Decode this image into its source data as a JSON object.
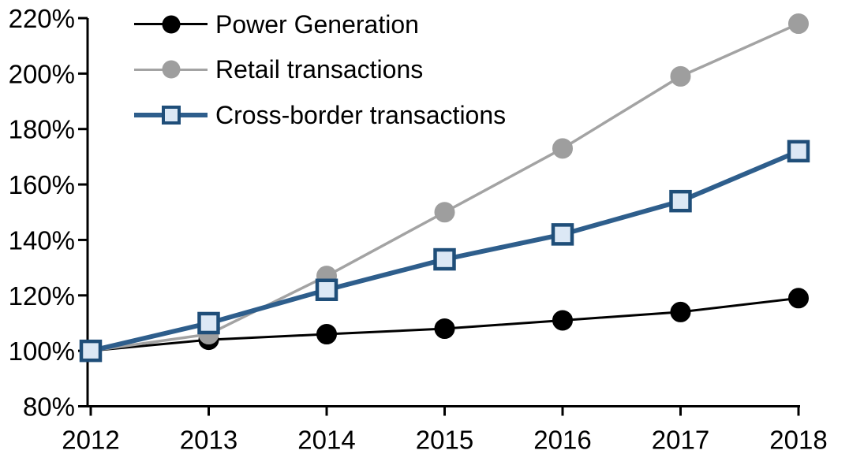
{
  "chart_data": {
    "type": "line",
    "title": "",
    "xlabel": "",
    "ylabel": "",
    "categories": [
      "2012",
      "2013",
      "2014",
      "2015",
      "2016",
      "2017",
      "2018"
    ],
    "series": [
      {
        "name": "Power Generation",
        "values": [
          100,
          104,
          106,
          108,
          111,
          114,
          119
        ],
        "color": "#000000",
        "line_width": 3,
        "marker": "circle",
        "marker_fill": "#000000",
        "marker_border": "#000000"
      },
      {
        "name": "Retail transactions",
        "values": [
          100,
          106,
          127,
          150,
          173,
          199,
          218
        ],
        "color": "#A3A3A3",
        "line_width": 3.5,
        "marker": "circle",
        "marker_fill": "#9E9E9E",
        "marker_border": "#9E9E9E"
      },
      {
        "name": "Cross-border transactions",
        "values": [
          100,
          110,
          122,
          133,
          142,
          154,
          172
        ],
        "color": "#2E5E8C",
        "line_width": 6,
        "marker": "square",
        "marker_fill": "#DCE8F5",
        "marker_border": "#1F4E79"
      }
    ],
    "ylim": [
      80,
      220
    ],
    "y_tick_step": 20,
    "y_tick_labels": [
      "80%",
      "100%",
      "120%",
      "140%",
      "160%",
      "180%",
      "200%",
      "220%"
    ],
    "x_tick_labels": [
      "2012",
      "2013",
      "2014",
      "2015",
      "2016",
      "2017",
      "2018"
    ],
    "grid": false,
    "legend_position": "top-left",
    "axis_color": "#000000"
  }
}
